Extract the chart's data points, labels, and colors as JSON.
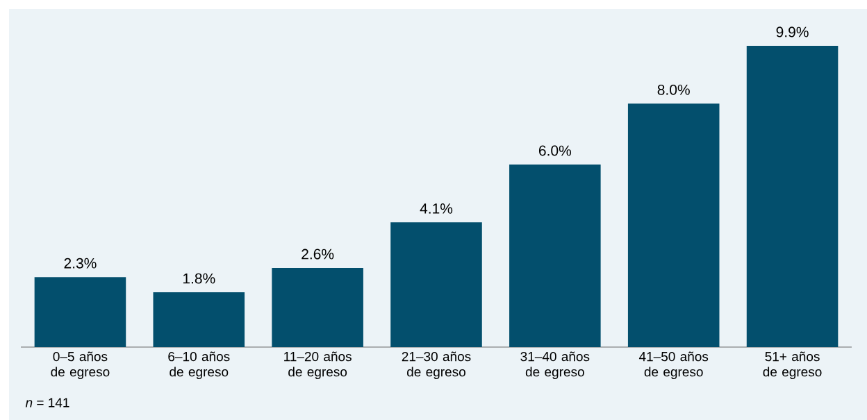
{
  "chart_data": {
    "type": "bar",
    "categories": [
      "0–5 años de egreso",
      "6–10 años de egreso",
      "11–20 años de egreso",
      "21–30 años de egreso",
      "31–40 años de egreso",
      "41–50 años de egreso",
      "51+ años de egreso"
    ],
    "values": [
      2.3,
      1.8,
      2.6,
      4.1,
      6.0,
      8.0,
      9.9
    ],
    "value_labels": [
      "2.3%",
      "1.8%",
      "2.6%",
      "4.1%",
      "6.0%",
      "8.0%",
      "9.9%"
    ],
    "color": "#034f6d",
    "annotations": [
      "*n* = 141"
    ]
  }
}
